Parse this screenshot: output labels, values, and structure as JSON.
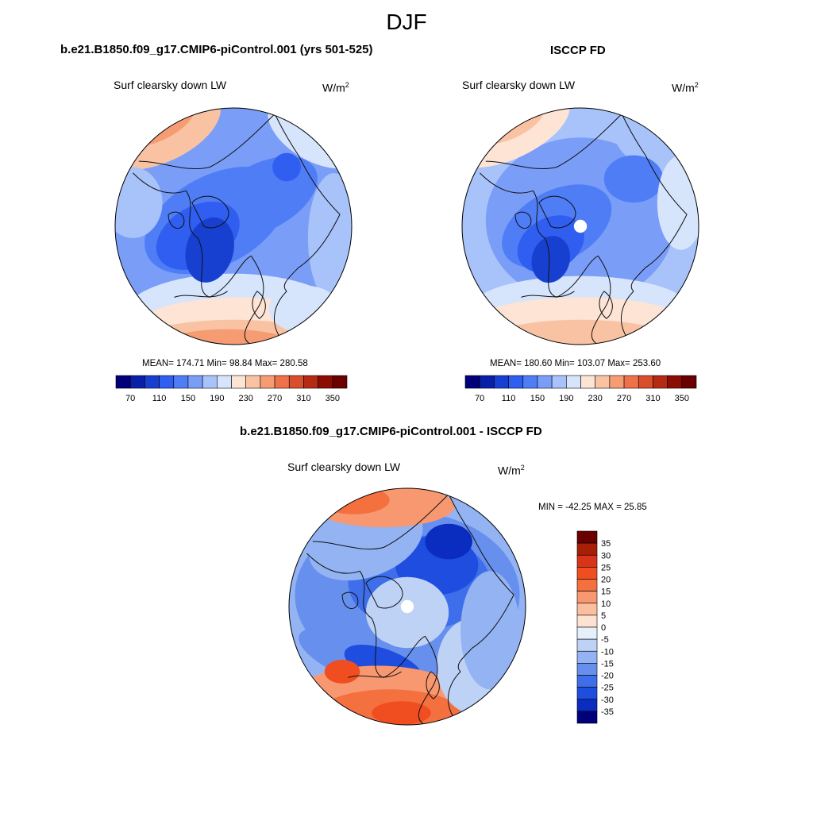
{
  "figure": {
    "title": "DJF"
  },
  "panels": [
    {
      "title": "b.e21.B1850.f09_g17.CMIP6-piControl.001 (yrs 501-525)",
      "variable": "Surf clearsky down LW",
      "units_base": "W/m",
      "units_exp": "2",
      "stats": "MEAN= 174.71  Min=  98.84  Max= 280.58"
    },
    {
      "title": "ISCCP FD",
      "variable": "Surf clearsky down LW",
      "units_base": "W/m",
      "units_exp": "2",
      "stats": "MEAN= 180.60  Min= 103.07  Max= 253.60"
    },
    {
      "title": "b.e21.B1850.f09_g17.CMIP6-piControl.001 - ISCCP FD",
      "variable": "Surf clearsky down LW",
      "units_base": "W/m",
      "units_exp": "2",
      "stats": "MIN = -42.25 MAX =  25.85"
    }
  ],
  "chart_data": [
    {
      "type": "heatmap",
      "projection": "north-polar-stereographic",
      "title": "b.e21.B1850.f09_g17.CMIP6-piControl.001 (yrs 501-525)",
      "variable": "Surf clearsky down LW",
      "units": "W/m2",
      "mean": 174.71,
      "min": 98.84,
      "max": 280.58,
      "colorbar_levels": [
        70,
        90,
        110,
        130,
        150,
        170,
        190,
        210,
        230,
        250,
        270,
        290,
        310,
        330,
        350
      ],
      "colorbar_labels": [
        "70",
        "110",
        "150",
        "190",
        "230",
        "270",
        "310",
        "350"
      ],
      "colors": [
        "#00007a",
        "#0a1fa8",
        "#1840d0",
        "#2f5ef0",
        "#4f7df5",
        "#7a9ef7",
        "#a8c2fa",
        "#d6e4fc",
        "#fde4d5",
        "#f9c3a3",
        "#f59c73",
        "#ee7149",
        "#d94e2b",
        "#b52a12",
        "#8c0c03",
        "#6a0000"
      ]
    },
    {
      "type": "heatmap",
      "projection": "north-polar-stereographic",
      "title": "ISCCP FD",
      "variable": "Surf clearsky down LW",
      "units": "W/m2",
      "mean": 180.6,
      "min": 103.07,
      "max": 253.6,
      "colorbar_levels": [
        70,
        90,
        110,
        130,
        150,
        170,
        190,
        210,
        230,
        250,
        270,
        290,
        310,
        330,
        350
      ],
      "colorbar_labels": [
        "70",
        "110",
        "150",
        "190",
        "230",
        "270",
        "310",
        "350"
      ],
      "colors": [
        "#00007a",
        "#0a1fa8",
        "#1840d0",
        "#2f5ef0",
        "#4f7df5",
        "#7a9ef7",
        "#a8c2fa",
        "#d6e4fc",
        "#fde4d5",
        "#f9c3a3",
        "#f59c73",
        "#ee7149",
        "#d94e2b",
        "#b52a12",
        "#8c0c03",
        "#6a0000"
      ]
    },
    {
      "type": "heatmap",
      "projection": "north-polar-stereographic",
      "title": "b.e21.B1850.f09_g17.CMIP6-piControl.001 - ISCCP FD",
      "variable": "Surf clearsky down LW",
      "units": "W/m2",
      "min": -42.25,
      "max": 25.85,
      "colorbar_labels": [
        "35",
        "30",
        "25",
        "20",
        "15",
        "10",
        "5",
        "0",
        "-5",
        "-10",
        "-15",
        "-20",
        "-25",
        "-30",
        "-35"
      ],
      "colors": [
        "#6a0000",
        "#a81f08",
        "#d8341a",
        "#f04e20",
        "#f5703f",
        "#f89870",
        "#fbbfa0",
        "#fde2d2",
        "#e6f0fb",
        "#bed2f6",
        "#93b3f2",
        "#6790ee",
        "#3e6eea",
        "#1e4ddf",
        "#0a2cbf",
        "#00007a"
      ]
    }
  ],
  "colors": {
    "coast": "#111111",
    "pole_mask": "#ffffff"
  }
}
